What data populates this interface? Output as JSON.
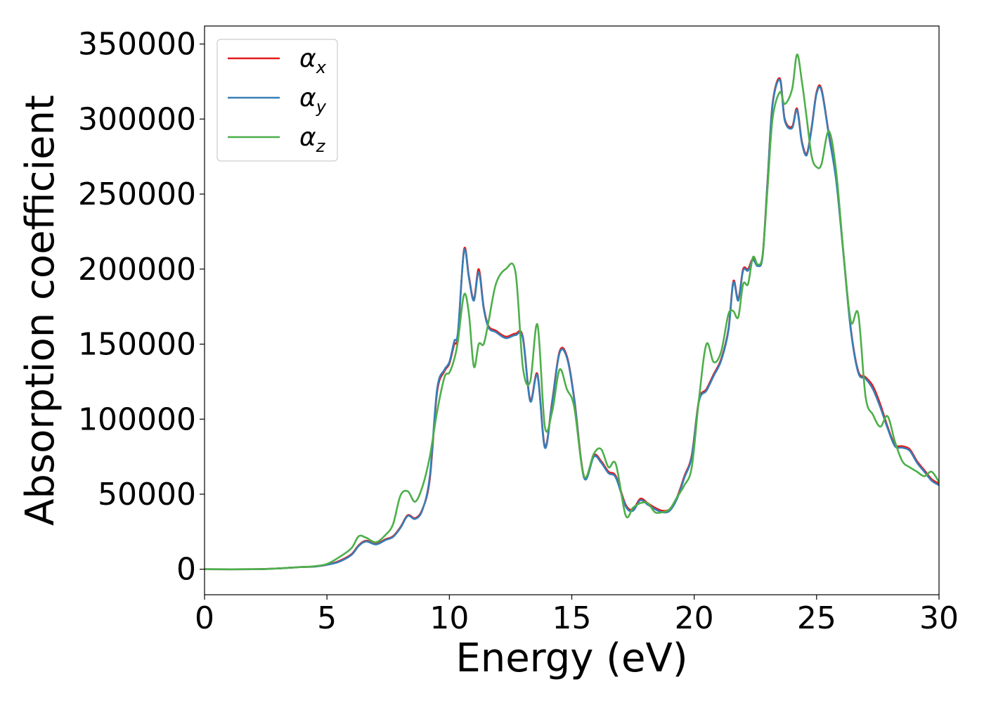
{
  "chart_data": {
    "type": "line",
    "title": "",
    "xlabel": "Energy (eV)",
    "ylabel": "Absorption coefficient",
    "xlim": [
      0,
      30
    ],
    "ylim": [
      -17000,
      362000
    ],
    "xticks": [
      0,
      5,
      10,
      15,
      20,
      25,
      30
    ],
    "yticks": [
      0,
      50000,
      100000,
      150000,
      200000,
      250000,
      300000,
      350000
    ],
    "grid": false,
    "legend_position": "top-left",
    "series": [
      {
        "name": "α_x",
        "color": "#e41a1c",
        "x": [
          0,
          2,
          3,
          3.5,
          4,
          4.5,
          5,
          5.5,
          6,
          6.3,
          6.6,
          7,
          7.4,
          7.7,
          8,
          8.3,
          8.6,
          8.9,
          9.2,
          9.5,
          9.8,
          10,
          10.2,
          10.35,
          10.6,
          10.8,
          11,
          11.2,
          11.4,
          11.6,
          11.9,
          12.3,
          12.7,
          13,
          13.3,
          13.6,
          13.9,
          14.2,
          14.5,
          14.8,
          15.1,
          15.5,
          15.9,
          16.2,
          16.5,
          16.8,
          17.2,
          17.5,
          17.8,
          18.1,
          18.4,
          18.7,
          19,
          19.3,
          19.6,
          19.9,
          20.2,
          20.5,
          20.8,
          21.1,
          21.4,
          21.6,
          21.8,
          22,
          22.2,
          22.4,
          22.6,
          22.8,
          23,
          23.2,
          23.5,
          23.7,
          24,
          24.2,
          24.4,
          24.6,
          24.8,
          25,
          25.2,
          25.5,
          25.8,
          26.1,
          26.4,
          26.7,
          27,
          27.3,
          27.6,
          27.9,
          28.2,
          28.5,
          28.8,
          29.1,
          29.4,
          29.7,
          30
        ],
        "y": [
          0,
          0,
          500,
          1000,
          1500,
          1800,
          3000,
          5500,
          10000,
          16000,
          19000,
          17000,
          20000,
          22000,
          28000,
          36000,
          34000,
          40000,
          60000,
          118000,
          132000,
          137000,
          150000,
          156000,
          213000,
          195000,
          180000,
          200000,
          175000,
          162000,
          159000,
          155000,
          157000,
          155000,
          113000,
          130000,
          82000,
          112000,
          145000,
          142000,
          114000,
          62000,
          76000,
          72000,
          65000,
          62000,
          43000,
          40000,
          47000,
          44000,
          41000,
          39000,
          40000,
          48000,
          62000,
          76000,
          113000,
          120000,
          130000,
          140000,
          160000,
          192000,
          180000,
          200000,
          200000,
          207000,
          203000,
          210000,
          260000,
          310000,
          327000,
          300000,
          295000,
          307000,
          285000,
          277000,
          295000,
          318000,
          320000,
          290000,
          260000,
          210000,
          160000,
          132000,
          128000,
          122000,
          110000,
          95000,
          83000,
          82000,
          80000,
          72000,
          66000,
          60000,
          57000
        ]
      },
      {
        "name": "α_y",
        "color": "#377eb8",
        "x": [
          0,
          2,
          3,
          3.5,
          4,
          4.5,
          5,
          5.5,
          6,
          6.3,
          6.6,
          7,
          7.4,
          7.7,
          8,
          8.3,
          8.6,
          8.9,
          9.2,
          9.5,
          9.8,
          10,
          10.2,
          10.35,
          10.6,
          10.8,
          11,
          11.2,
          11.4,
          11.6,
          11.9,
          12.3,
          12.7,
          13,
          13.3,
          13.6,
          13.9,
          14.2,
          14.5,
          14.8,
          15.1,
          15.5,
          15.9,
          16.2,
          16.5,
          16.8,
          17.2,
          17.5,
          17.8,
          18.1,
          18.4,
          18.7,
          19,
          19.3,
          19.6,
          19.9,
          20.2,
          20.5,
          20.8,
          21.1,
          21.4,
          21.6,
          21.8,
          22,
          22.2,
          22.4,
          22.6,
          22.8,
          23,
          23.2,
          23.5,
          23.7,
          24,
          24.2,
          24.4,
          24.6,
          24.8,
          25,
          25.2,
          25.5,
          25.8,
          26.1,
          26.4,
          26.7,
          27,
          27.3,
          27.6,
          27.9,
          28.2,
          28.5,
          28.8,
          29.1,
          29.4,
          29.7,
          30
        ],
        "y": [
          0,
          0,
          500,
          1000,
          1500,
          1800,
          3000,
          5000,
          9500,
          15500,
          18500,
          16500,
          19500,
          21500,
          27500,
          35500,
          33500,
          39500,
          62000,
          120000,
          133000,
          138000,
          152000,
          158000,
          212000,
          194000,
          179000,
          198000,
          174000,
          161000,
          158000,
          154000,
          156000,
          154000,
          112000,
          129000,
          81000,
          111000,
          144000,
          141000,
          113000,
          61000,
          75000,
          71000,
          64000,
          61000,
          42000,
          39000,
          46000,
          43000,
          40000,
          38000,
          39000,
          47000,
          61000,
          75000,
          112000,
          119000,
          129000,
          139000,
          159000,
          191000,
          179000,
          199000,
          199000,
          206000,
          202000,
          209000,
          259000,
          309000,
          326000,
          299000,
          294000,
          306000,
          284000,
          276000,
          294000,
          317000,
          319000,
          289000,
          259000,
          209000,
          159000,
          131000,
          127000,
          120000,
          108000,
          94000,
          82000,
          81000,
          79000,
          71000,
          65000,
          59000,
          56000
        ]
      },
      {
        "name": "α_z",
        "color": "#4daf4a",
        "x": [
          0,
          2,
          3,
          3.5,
          4,
          4.5,
          5,
          5.5,
          6,
          6.3,
          6.6,
          7,
          7.4,
          7.7,
          8,
          8.3,
          8.6,
          8.9,
          9.2,
          9.5,
          9.8,
          10,
          10.2,
          10.35,
          10.6,
          10.8,
          11,
          11.2,
          11.4,
          11.6,
          11.9,
          12.3,
          12.7,
          13,
          13.3,
          13.6,
          13.9,
          14.2,
          14.5,
          14.8,
          15.1,
          15.5,
          15.9,
          16.2,
          16.5,
          16.8,
          17.2,
          17.5,
          17.8,
          18.1,
          18.4,
          18.7,
          19,
          19.3,
          19.6,
          19.9,
          20.2,
          20.5,
          20.8,
          21.1,
          21.4,
          21.6,
          21.8,
          22,
          22.2,
          22.4,
          22.6,
          22.8,
          23,
          23.2,
          23.5,
          23.7,
          24,
          24.2,
          24.4,
          24.6,
          24.8,
          25,
          25.2,
          25.5,
          25.8,
          26.1,
          26.4,
          26.7,
          27,
          27.3,
          27.6,
          27.9,
          28.2,
          28.5,
          28.8,
          29.1,
          29.4,
          29.7,
          30
        ],
        "y": [
          0,
          0,
          500,
          1000,
          1500,
          2000,
          3500,
          8000,
          14000,
          22000,
          21000,
          18000,
          23000,
          30000,
          49000,
          52000,
          45000,
          55000,
          75000,
          105000,
          128000,
          131000,
          140000,
          152000,
          183000,
          170000,
          135000,
          150000,
          150000,
          165000,
          190000,
          200000,
          198000,
          135000,
          125000,
          163000,
          95000,
          105000,
          133000,
          120000,
          108000,
          62000,
          77000,
          80000,
          68000,
          70000,
          36000,
          41000,
          44000,
          44000,
          38000,
          38000,
          40000,
          48000,
          56000,
          68000,
          114000,
          150000,
          138000,
          145000,
          170000,
          172000,
          168000,
          190000,
          190000,
          208000,
          203000,
          210000,
          255000,
          300000,
          318000,
          310000,
          320000,
          343000,
          325000,
          300000,
          275000,
          268000,
          270000,
          292000,
          265000,
          210000,
          165000,
          170000,
          115000,
          103000,
          95000,
          102000,
          85000,
          72000,
          68000,
          65000,
          62000,
          65000,
          58000
        ]
      }
    ]
  }
}
